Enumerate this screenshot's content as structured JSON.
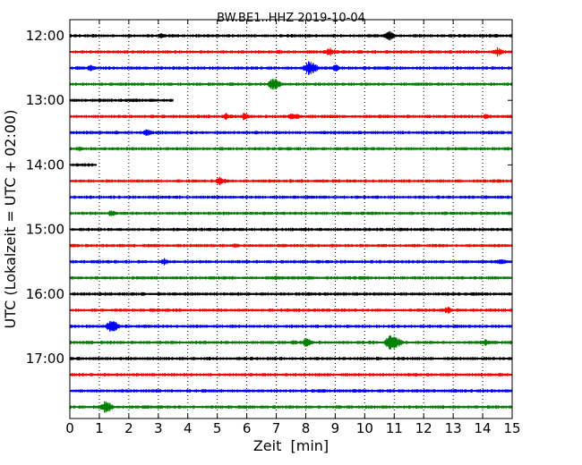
{
  "chart_data": {
    "type": "line",
    "title": "BW.BE1..HHZ 2019-10-04",
    "xlabel": "Zeit  [min]",
    "ylabel": "UTC (Lokalzeit = UTC + 02:00)",
    "xlim": [
      0,
      15
    ],
    "x_ticks": [
      "0",
      "1",
      "2",
      "3",
      "4",
      "5",
      "6",
      "7",
      "8",
      "9",
      "10",
      "11",
      "12",
      "13",
      "14",
      "15"
    ],
    "time_labels": [
      "12:00",
      "13:00",
      "14:00",
      "15:00",
      "16:00",
      "17:00"
    ],
    "grid": "vertical dotted",
    "colors": [
      "#000000",
      "#ff0000",
      "#0000ff",
      "#008000"
    ],
    "traces": [
      {
        "start": "12:00",
        "color": "#000000",
        "x_start": 0,
        "x_end": 15,
        "events": [
          {
            "x": 3.1,
            "a": 3
          },
          {
            "x": 10.8,
            "a": 6
          }
        ]
      },
      {
        "start": "12:15",
        "color": "#ff0000",
        "x_start": 0,
        "x_end": 15,
        "events": [
          {
            "x": 7.1,
            "a": 3
          },
          {
            "x": 8.8,
            "a": 5
          },
          {
            "x": 14.5,
            "a": 5
          }
        ]
      },
      {
        "start": "12:30",
        "color": "#0000ff",
        "x_start": 0,
        "x_end": 15,
        "events": [
          {
            "x": 0.3,
            "a": 3
          },
          {
            "x": 0.7,
            "a": 4
          },
          {
            "x": 8.1,
            "a": 8
          },
          {
            "x": 9.0,
            "a": 4
          }
        ]
      },
      {
        "start": "12:45",
        "color": "#008000",
        "x_start": 0,
        "x_end": 15,
        "events": [
          {
            "x": 6.9,
            "a": 7
          },
          {
            "x": 10.0,
            "a": 2
          }
        ]
      },
      {
        "start": "13:00",
        "color": "#000000",
        "x_start": 0,
        "x_end": 3.5,
        "events": []
      },
      {
        "start": "13:15",
        "color": "#ff0000",
        "x_start": 0,
        "x_end": 15,
        "events": [
          {
            "x": 5.3,
            "a": 4
          },
          {
            "x": 5.9,
            "a": 4
          },
          {
            "x": 7.5,
            "a": 4
          },
          {
            "x": 7.7,
            "a": 3
          },
          {
            "x": 14.1,
            "a": 3
          }
        ]
      },
      {
        "start": "13:30",
        "color": "#0000ff",
        "x_start": 0,
        "x_end": 15,
        "events": [
          {
            "x": 2.6,
            "a": 4
          }
        ]
      },
      {
        "start": "13:45",
        "color": "#008000",
        "x_start": 0,
        "x_end": 15,
        "events": [
          {
            "x": 0.3,
            "a": 3
          },
          {
            "x": 7.4,
            "a": 2
          }
        ]
      },
      {
        "start": "14:00",
        "color": "#000000",
        "x_start": 0,
        "x_end": 0.9,
        "events": []
      },
      {
        "start": "14:15",
        "color": "#ff0000",
        "x_start": 0,
        "x_end": 15,
        "events": [
          {
            "x": 5.1,
            "a": 5
          },
          {
            "x": 9.0,
            "a": 2
          }
        ]
      },
      {
        "start": "14:30",
        "color": "#0000ff",
        "x_start": 0,
        "x_end": 15,
        "events": [
          {
            "x": 3.6,
            "a": 2
          },
          {
            "x": 8.2,
            "a": 2
          }
        ]
      },
      {
        "start": "14:45",
        "color": "#008000",
        "x_start": 0,
        "x_end": 15,
        "events": [
          {
            "x": 1.4,
            "a": 4
          },
          {
            "x": 12.7,
            "a": 2
          }
        ]
      },
      {
        "start": "15:00",
        "color": "#000000",
        "x_start": 0,
        "x_end": 15,
        "events": [
          {
            "x": 2.8,
            "a": 2
          }
        ]
      },
      {
        "start": "15:15",
        "color": "#ff0000",
        "x_start": 0,
        "x_end": 15,
        "events": [
          {
            "x": 5.6,
            "a": 3
          },
          {
            "x": 8.9,
            "a": 2
          }
        ]
      },
      {
        "start": "15:30",
        "color": "#0000ff",
        "x_start": 0,
        "x_end": 15,
        "events": [
          {
            "x": 3.2,
            "a": 4
          },
          {
            "x": 14.6,
            "a": 4
          }
        ]
      },
      {
        "start": "15:45",
        "color": "#008000",
        "x_start": 0,
        "x_end": 15,
        "events": [
          {
            "x": 7.0,
            "a": 3
          }
        ]
      },
      {
        "start": "16:00",
        "color": "#000000",
        "x_start": 0,
        "x_end": 15,
        "events": [
          {
            "x": 6.5,
            "a": 2
          }
        ]
      },
      {
        "start": "16:15",
        "color": "#ff0000",
        "x_start": 0,
        "x_end": 15,
        "events": [
          {
            "x": 12.8,
            "a": 4
          }
        ]
      },
      {
        "start": "16:30",
        "color": "#0000ff",
        "x_start": 0,
        "x_end": 15,
        "events": [
          {
            "x": 1.4,
            "a": 7
          },
          {
            "x": 2.5,
            "a": 2
          }
        ]
      },
      {
        "start": "16:45",
        "color": "#008000",
        "x_start": 0,
        "x_end": 15,
        "events": [
          {
            "x": 7.6,
            "a": 3
          },
          {
            "x": 8.0,
            "a": 5
          },
          {
            "x": 10.9,
            "a": 9
          },
          {
            "x": 14.1,
            "a": 4
          }
        ]
      },
      {
        "start": "17:00",
        "color": "#000000",
        "x_start": 0,
        "x_end": 15,
        "events": [
          {
            "x": 3.8,
            "a": 2
          }
        ]
      },
      {
        "start": "17:15",
        "color": "#ff0000",
        "x_start": 0,
        "x_end": 15,
        "events": []
      },
      {
        "start": "17:30",
        "color": "#0000ff",
        "x_start": 0,
        "x_end": 15,
        "events": []
      },
      {
        "start": "17:45",
        "color": "#008000",
        "x_start": 0,
        "x_end": 15,
        "events": [
          {
            "x": 1.2,
            "a": 7
          }
        ]
      }
    ]
  }
}
